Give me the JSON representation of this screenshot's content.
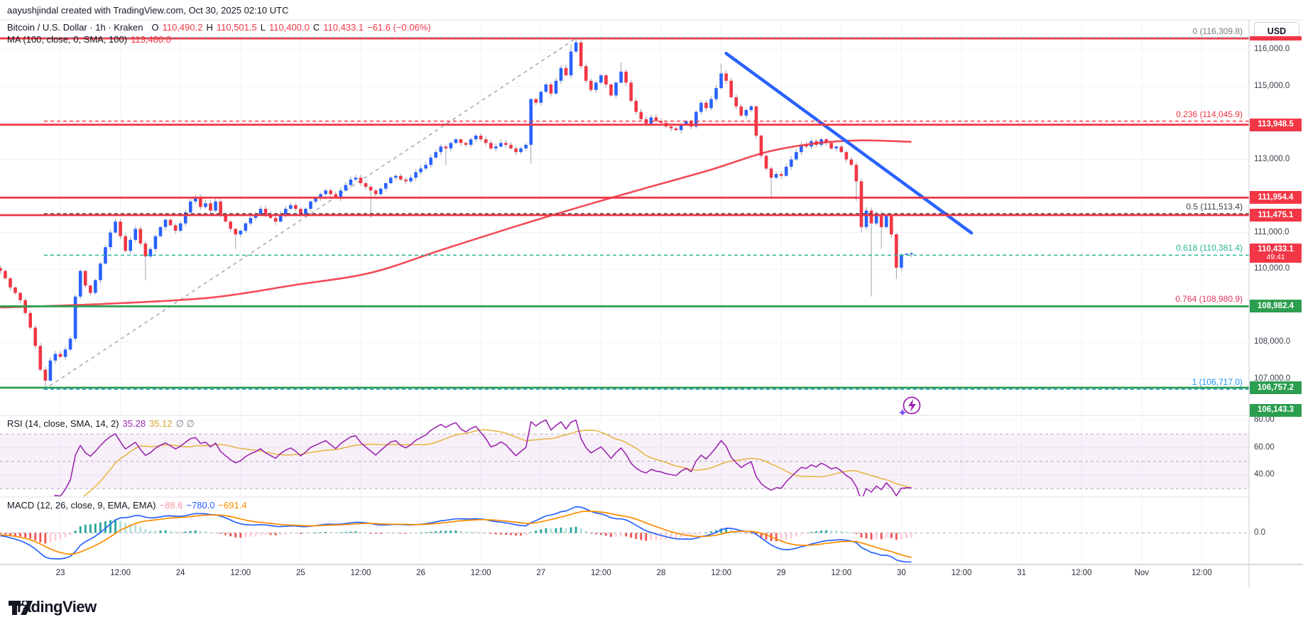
{
  "attribution": "aayushjindal created with TradingView.com, Oct 30, 2025 02:10 UTC",
  "logo_text": "TradingView",
  "symbol_row": {
    "title": "Bitcoin / U.S. Dollar · 1h · Kraken",
    "o_label": "O",
    "o_value": "110,490.2",
    "h_label": "H",
    "h_value": "110,501.5",
    "l_label": "L",
    "l_value": "110,400.0",
    "c_label": "C",
    "c_value": "110,433.1",
    "change": "−61.6 (−0.06%)"
  },
  "ma_row": {
    "label": "MA (100, close, 0, SMA, 100)",
    "value": "113,480.0"
  },
  "rsi_row": {
    "label": "RSI (14, close, SMA, 14, 2)",
    "rsi_value": "35.28",
    "sma_value": "35.12",
    "bands": "∅ ∅"
  },
  "macd_row": {
    "label": "MACD (12, 26, close, 9, EMA, EMA)",
    "hist_value": "−88.6",
    "macd_value": "−780.0",
    "signal_value": "−691.4"
  },
  "axis": {
    "currency": "USD",
    "price_ticks": [
      {
        "price": 116000,
        "label": "116,000.0"
      },
      {
        "price": 115000,
        "label": "115,000.0"
      },
      {
        "price": 113000,
        "label": "113,000.0"
      },
      {
        "price": 111000,
        "label": "111,000.0"
      },
      {
        "price": 110000,
        "label": "110,000.0"
      },
      {
        "price": 108000,
        "label": "108,000.0"
      },
      {
        "price": 107000,
        "label": "107,000.0"
      }
    ],
    "rsi_ticks": [
      {
        "v": 80,
        "label": "80.00"
      },
      {
        "v": 60,
        "label": "60.00"
      },
      {
        "v": 40,
        "label": "40.00"
      }
    ],
    "macd_zero_label": "0.0",
    "time_ticks": [
      [
        24,
        "23"
      ],
      [
        36,
        "12:00"
      ],
      [
        48,
        "24"
      ],
      [
        60,
        "12:00"
      ],
      [
        72,
        "25"
      ],
      [
        84,
        "12:00"
      ],
      [
        96,
        "26"
      ],
      [
        108,
        "12:00"
      ],
      [
        120,
        "27"
      ],
      [
        132,
        "12:00"
      ],
      [
        144,
        "28"
      ],
      [
        156,
        "12:00"
      ],
      [
        168,
        "29"
      ],
      [
        180,
        "12:00"
      ],
      [
        192,
        "30"
      ],
      [
        204,
        "12:00"
      ],
      [
        216,
        "31"
      ],
      [
        228,
        "12:00"
      ],
      [
        240,
        "Nov"
      ],
      [
        252,
        "12:00"
      ]
    ]
  },
  "price_tags": [
    {
      "text": "116,309.8",
      "price": 116309.8,
      "bg": "#F23645",
      "thin": true
    },
    {
      "text": "113,948.5",
      "price": 113948.5,
      "bg": "#F23645"
    },
    {
      "text": "111,954.4",
      "price": 111954.4,
      "bg": "#F23645"
    },
    {
      "text": "111,475.1",
      "price": 111475.1,
      "bg": "#F23645"
    },
    {
      "text": "110,433.1",
      "sub": "49:41",
      "price": 110433.1,
      "bg": "#F23645"
    },
    {
      "text": "108,982.4",
      "price": 108982.4,
      "bg": "#2B9E4F"
    },
    {
      "text": "106,757.2",
      "price": 106757.2,
      "bg": "#2B9E4F"
    },
    {
      "text": "106,143.3",
      "price": 106143.3,
      "bg": "#2B9E4F"
    }
  ],
  "fib_labels": [
    {
      "price": 116309.8,
      "text": "0 (116,309.8)",
      "color": "#787B86"
    },
    {
      "price": 114045.9,
      "text": "0.236 (114,045.9)",
      "color": "#F23645"
    },
    {
      "price": 111513.4,
      "text": "0.5 (111,513.4)",
      "color": "#45404A"
    },
    {
      "price": 110381.4,
      "text": "0.618 (110,381.4)",
      "color": "#2BB596"
    },
    {
      "price": 108980.9,
      "text": "0.764 (108,980.9)",
      "color": "#E0355E"
    },
    {
      "price": 106717.0,
      "text": "1 (106,717.0)",
      "color": "#2196F3"
    }
  ],
  "chart_data": {
    "type": "candlestick",
    "title": "Bitcoin / U.S. Dollar",
    "interval": "1h",
    "exchange": "Kraken",
    "last_ohlc": {
      "open": 110490.2,
      "high": 110501.5,
      "low": 110400.0,
      "close": 110433.1,
      "change": -61.6,
      "change_pct": -0.06
    },
    "x_axis_start_hour_label": "Oct 22 12:00 UTC",
    "y_range_visible": [
      106000,
      116800
    ],
    "levels": [
      {
        "price": 116309.8,
        "color": "#F23645",
        "style": "solid"
      },
      {
        "price": 113948.5,
        "color": "#F23645",
        "style": "solid"
      },
      {
        "price": 111954.4,
        "color": "#F23645",
        "style": "solid"
      },
      {
        "price": 111475.1,
        "color": "#F23645",
        "style": "solid"
      },
      {
        "price": 108982.4,
        "color": "#2B9E4F",
        "style": "solid"
      },
      {
        "price": 106757.2,
        "color": "#2B9E4F",
        "style": "solid"
      }
    ],
    "fib_retracement": [
      {
        "level": 0,
        "price": 116309.8,
        "color": "#9598A1"
      },
      {
        "level": 0.236,
        "price": 114045.9,
        "color": "#F23645"
      },
      {
        "level": 0.5,
        "price": 111513.4,
        "color": "#3C3842"
      },
      {
        "level": 0.618,
        "price": 110381.4,
        "color": "#2BB596"
      },
      {
        "level": 0.764,
        "price": 108980.9,
        "color": "#E0355E"
      },
      {
        "level": 1,
        "price": 106717.0,
        "color": "#2196F3"
      }
    ],
    "trendlines": [
      {
        "name": "fib-base-dashed",
        "h1": 20.7,
        "price1": 106700,
        "h2": 127,
        "price2": 116310,
        "color": "#A3A6AF",
        "dash": true,
        "width": 1.5
      },
      {
        "name": "downtrend-blue",
        "h1": 157,
        "price1": 115900,
        "h2": 206,
        "price2": 110990,
        "color": "#2962FF",
        "dash": false,
        "width": 4.5
      }
    ],
    "ma_path": [
      [
        12,
        108950
      ],
      [
        33,
        109050
      ],
      [
        54,
        109220
      ],
      [
        71,
        109570
      ],
      [
        86,
        109900
      ],
      [
        100,
        110520
      ],
      [
        114,
        111130
      ],
      [
        128,
        111710
      ],
      [
        140,
        112180
      ],
      [
        154,
        112720
      ],
      [
        165,
        113200
      ],
      [
        175,
        113440
      ],
      [
        184,
        113520
      ],
      [
        194,
        113480
      ]
    ],
    "price_path": [
      [
        12,
        109950
      ],
      [
        13,
        109750
      ],
      [
        14,
        109500
      ],
      [
        15,
        109350
      ],
      [
        16,
        109150
      ],
      [
        17,
        108800
      ],
      [
        18,
        108400
      ],
      [
        19,
        107900
      ],
      [
        20,
        107250
      ],
      [
        21,
        106950
      ],
      [
        22,
        107500
      ],
      [
        23,
        107680
      ],
      [
        24,
        107600
      ],
      [
        25,
        107800
      ],
      [
        26,
        108100
      ],
      [
        27,
        109250
      ],
      [
        28,
        109950
      ],
      [
        29,
        109550
      ],
      [
        30,
        109350
      ],
      [
        31,
        109700
      ],
      [
        32,
        110150
      ],
      [
        33,
        110600
      ],
      [
        34,
        111000
      ],
      [
        35,
        111300
      ],
      [
        36,
        110900
      ],
      [
        37,
        110500
      ],
      [
        38,
        110800
      ],
      [
        39,
        111100
      ],
      [
        40,
        110700
      ],
      [
        41,
        110350
      ],
      [
        42,
        110550
      ],
      [
        43,
        110900
      ],
      [
        44,
        111150
      ],
      [
        45,
        111350
      ],
      [
        46,
        111200
      ],
      [
        47,
        111050
      ],
      [
        48,
        111250
      ],
      [
        49,
        111550
      ],
      [
        50,
        111850
      ],
      [
        51,
        111950
      ],
      [
        52,
        111700
      ],
      [
        53,
        111800
      ],
      [
        54,
        111600
      ],
      [
        55,
        111850
      ],
      [
        56,
        111500
      ],
      [
        57,
        111300
      ],
      [
        58,
        111100
      ],
      [
        59,
        110950
      ],
      [
        60,
        111050
      ],
      [
        61,
        111250
      ],
      [
        62,
        111400
      ],
      [
        63,
        111500
      ],
      [
        64,
        111650
      ],
      [
        65,
        111500
      ],
      [
        66,
        111400
      ],
      [
        67,
        111300
      ],
      [
        68,
        111500
      ],
      [
        69,
        111650
      ],
      [
        70,
        111750
      ],
      [
        71,
        111650
      ],
      [
        72,
        111500
      ],
      [
        73,
        111650
      ],
      [
        74,
        111850
      ],
      [
        75,
        111950
      ],
      [
        76,
        112050
      ],
      [
        77,
        112150
      ],
      [
        78,
        112050
      ],
      [
        79,
        111950
      ],
      [
        80,
        112150
      ],
      [
        81,
        112300
      ],
      [
        82,
        112450
      ],
      [
        83,
        112500
      ],
      [
        84,
        112350
      ],
      [
        85,
        112250
      ],
      [
        86,
        112150
      ],
      [
        87,
        112050
      ],
      [
        88,
        112200
      ],
      [
        89,
        112350
      ],
      [
        90,
        112500
      ],
      [
        91,
        112550
      ],
      [
        92,
        112450
      ],
      [
        93,
        112400
      ],
      [
        94,
        112500
      ],
      [
        95,
        112650
      ],
      [
        96,
        112750
      ],
      [
        97,
        112850
      ],
      [
        98,
        113050
      ],
      [
        99,
        113200
      ],
      [
        100,
        113350
      ],
      [
        101,
        113300
      ],
      [
        102,
        113450
      ],
      [
        103,
        113550
      ],
      [
        104,
        113450
      ],
      [
        105,
        113400
      ],
      [
        106,
        113550
      ],
      [
        107,
        113650
      ],
      [
        108,
        113550
      ],
      [
        109,
        113450
      ],
      [
        110,
        113300
      ],
      [
        111,
        113350
      ],
      [
        112,
        113450
      ],
      [
        113,
        113400
      ],
      [
        114,
        113300
      ],
      [
        115,
        113200
      ],
      [
        116,
        113300
      ],
      [
        117,
        113400
      ],
      [
        118,
        114650
      ],
      [
        119,
        114550
      ],
      [
        120,
        114850
      ],
      [
        121,
        115050
      ],
      [
        122,
        114800
      ],
      [
        123,
        115150
      ],
      [
        124,
        115500
      ],
      [
        125,
        115300
      ],
      [
        126,
        115950
      ],
      [
        127,
        116200
      ],
      [
        128,
        115550
      ],
      [
        129,
        115150
      ],
      [
        130,
        114900
      ],
      [
        131,
        115100
      ],
      [
        132,
        115300
      ],
      [
        133,
        115050
      ],
      [
        134,
        114750
      ],
      [
        135,
        115100
      ],
      [
        136,
        115400
      ],
      [
        137,
        115100
      ],
      [
        138,
        114600
      ],
      [
        139,
        114300
      ],
      [
        140,
        114100
      ],
      [
        141,
        113980
      ],
      [
        142,
        114150
      ],
      [
        143,
        114050
      ],
      [
        144,
        114000
      ],
      [
        145,
        113900
      ],
      [
        146,
        113850
      ],
      [
        147,
        113800
      ],
      [
        148,
        113950
      ],
      [
        149,
        114050
      ],
      [
        150,
        113900
      ],
      [
        151,
        114300
      ],
      [
        152,
        114550
      ],
      [
        153,
        114400
      ],
      [
        154,
        114650
      ],
      [
        155,
        114950
      ],
      [
        156,
        115350
      ],
      [
        157,
        115150
      ],
      [
        158,
        114700
      ],
      [
        159,
        114450
      ],
      [
        160,
        114200
      ],
      [
        161,
        114350
      ],
      [
        162,
        114450
      ],
      [
        163,
        113650
      ],
      [
        164,
        113100
      ],
      [
        165,
        112750
      ],
      [
        166,
        112500
      ],
      [
        167,
        112600
      ],
      [
        168,
        112550
      ],
      [
        169,
        112800
      ],
      [
        170,
        113000
      ],
      [
        171,
        113200
      ],
      [
        172,
        113400
      ],
      [
        173,
        113350
      ],
      [
        174,
        113500
      ],
      [
        175,
        113400
      ],
      [
        176,
        113550
      ],
      [
        177,
        113450
      ],
      [
        178,
        113300
      ],
      [
        179,
        113350
      ],
      [
        180,
        113200
      ],
      [
        181,
        113000
      ],
      [
        182,
        112850
      ],
      [
        183,
        112400
      ],
      [
        184,
        111150
      ],
      [
        185,
        111600
      ],
      [
        186,
        111250
      ],
      [
        187,
        111500
      ],
      [
        188,
        111150
      ],
      [
        189,
        111450
      ],
      [
        190,
        110950
      ],
      [
        191,
        110040
      ],
      [
        192,
        110400
      ],
      [
        193,
        110420
      ],
      [
        194,
        110433
      ]
    ],
    "wick_overrides": [
      {
        "h": 21,
        "low": 106720
      },
      {
        "h": 41,
        "low": 109700
      },
      {
        "h": 59,
        "low": 110550
      },
      {
        "h": 86,
        "low": 111400
      },
      {
        "h": 101,
        "low": 112850
      },
      {
        "h": 118,
        "low": 112890
      },
      {
        "h": 126,
        "high": 116150
      },
      {
        "h": 127,
        "high": 116310
      },
      {
        "h": 136,
        "high": 115650
      },
      {
        "h": 141,
        "low": 113900
      },
      {
        "h": 156,
        "high": 115620
      },
      {
        "h": 166,
        "low": 111920
      },
      {
        "h": 183,
        "low": 111860
      },
      {
        "h": 184,
        "low": 110990
      },
      {
        "h": 186,
        "low": 109250
      },
      {
        "h": 188,
        "low": 110560
      },
      {
        "h": 191,
        "low": 109730
      }
    ],
    "indicators": {
      "ma": {
        "name": "MA",
        "params": [
          100,
          "close",
          0,
          "SMA",
          100
        ],
        "value": 113480.0,
        "color": "#F23645"
      },
      "rsi": {
        "name": "RSI",
        "params": [
          14,
          "close",
          "SMA",
          14,
          2
        ],
        "value": 35.28,
        "sma_value": 35.12,
        "band": [
          70,
          30
        ],
        "middle": 50,
        "color": "#9C27B0",
        "sma_color": "#E5B43C",
        "band_fill": "rgba(156,39,176,0.07)"
      },
      "macd": {
        "name": "MACD",
        "params": [
          12,
          26,
          "close",
          9,
          "EMA",
          "EMA"
        ],
        "hist": -88.6,
        "macd": -780.0,
        "signal": -691.4,
        "macd_color": "#2962FF",
        "signal_color": "#FB8C00",
        "hist_colors": [
          "#26A69A",
          "#B2DFDB",
          "#FFCDD2",
          "#EF5350"
        ]
      }
    },
    "colors": {
      "up": "#2962FF",
      "down": "#F23645",
      "wick": "#9BA0AA",
      "grid": "#F0F3FA",
      "separator": "#E0E3EB",
      "axis_border": "#C9CCD4",
      "level_red": "#F23645",
      "level_green": "#2B9E4F",
      "flash_icon": "#9C27B0"
    }
  }
}
